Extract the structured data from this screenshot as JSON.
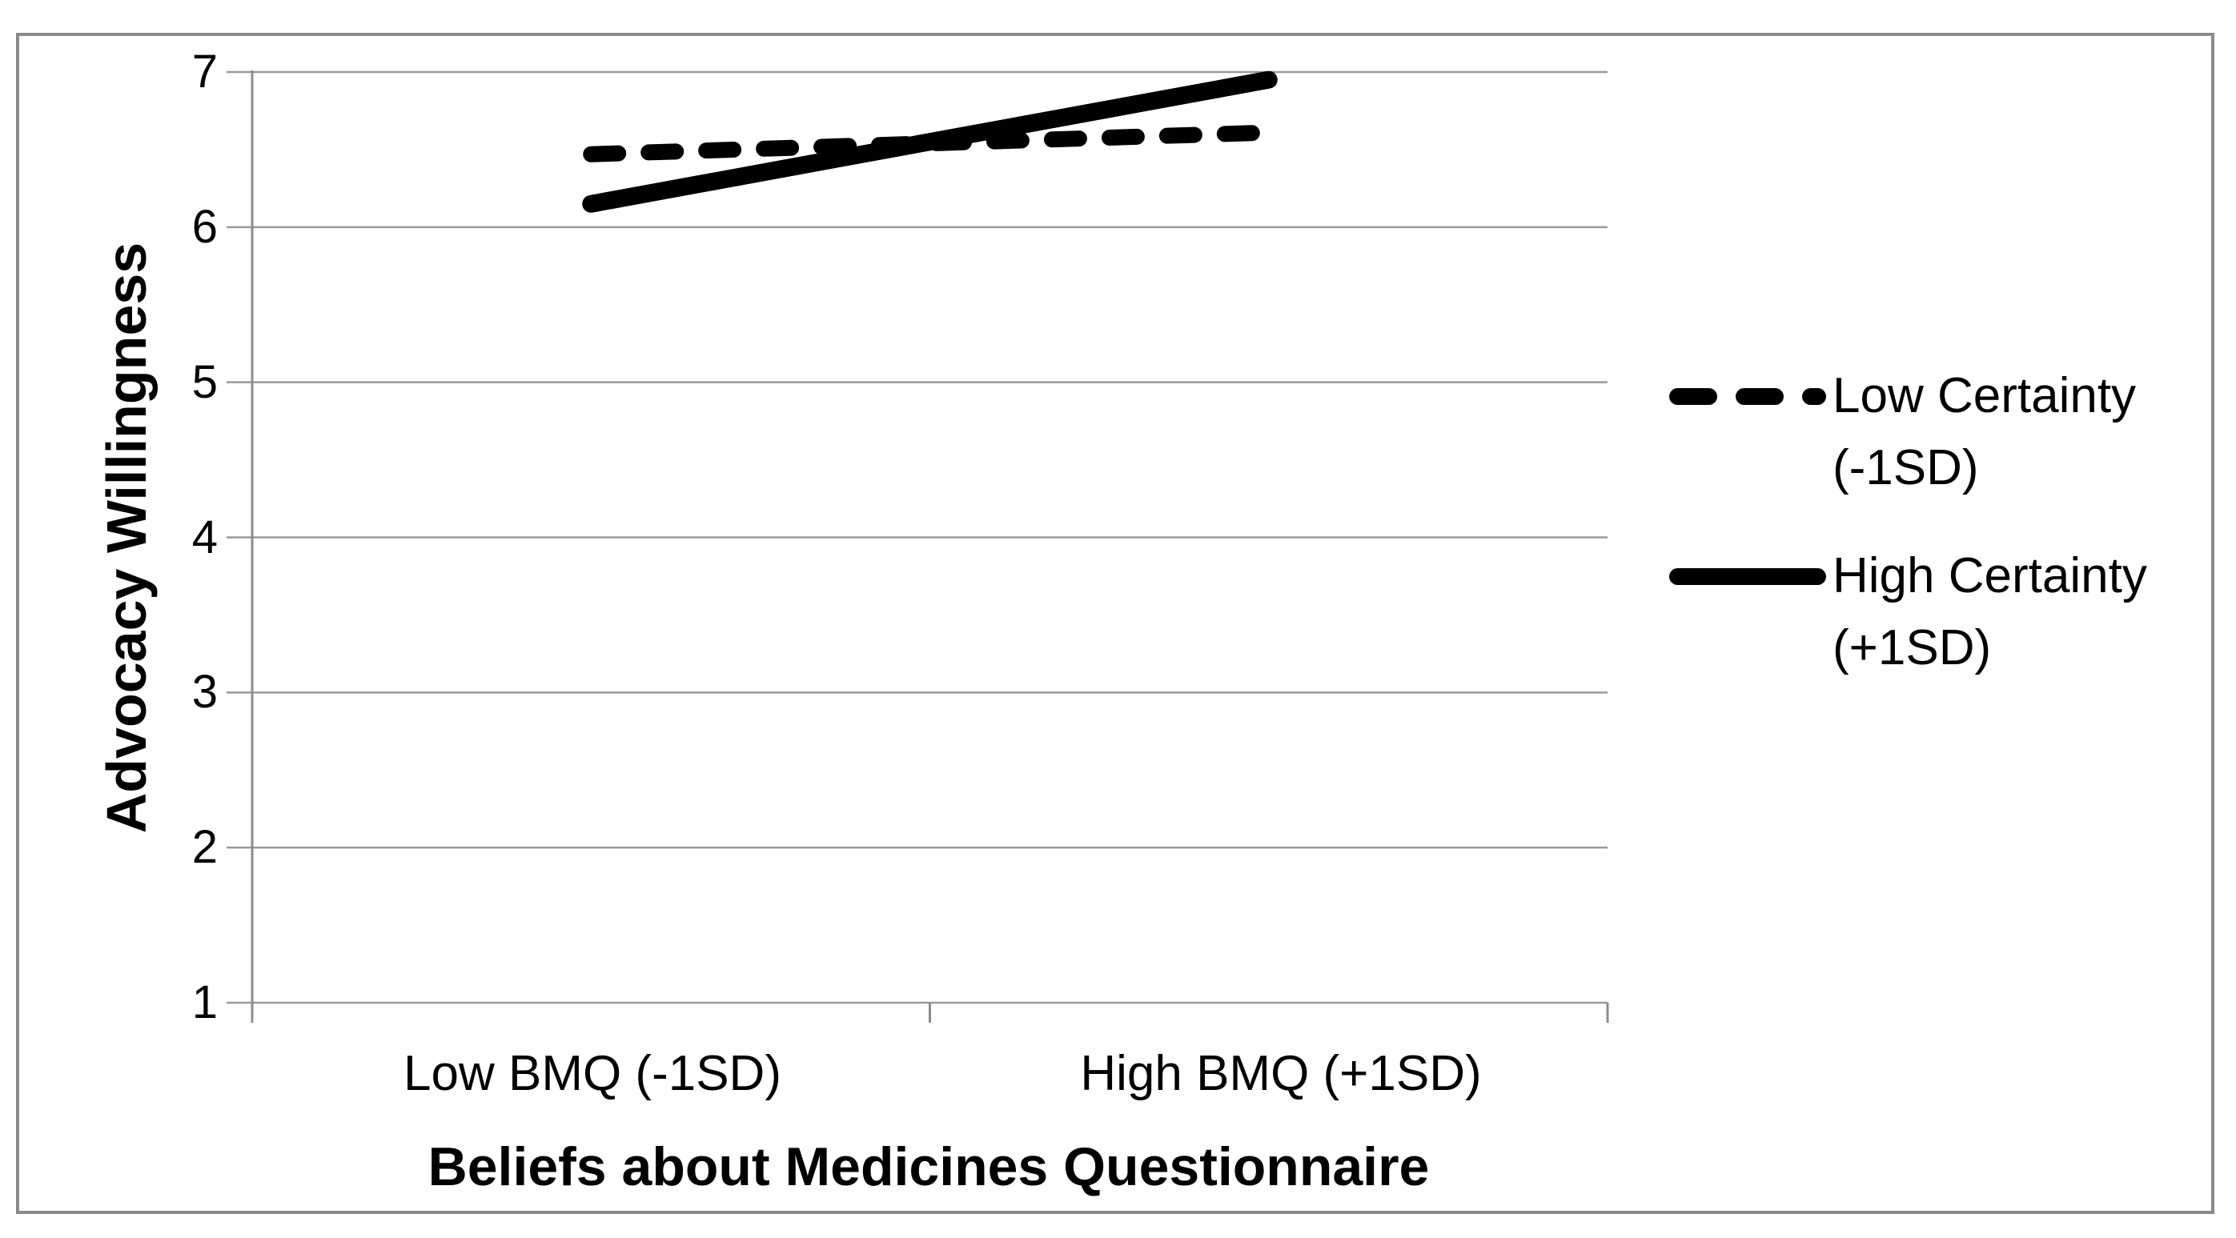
{
  "figure": {
    "background": "#ffffff",
    "border_color": "#8a8a8a"
  },
  "chart_data": {
    "type": "line",
    "title": "",
    "xlabel": "Beliefs about Medicines Questionnaire",
    "ylabel": "Advocacy Willingness",
    "categories": [
      "Low BMQ (-1SD)",
      "High BMQ (+1SD)"
    ],
    "series": [
      {
        "name": "Low Certainty (-1SD)",
        "style": "dashed",
        "values": [
          6.47,
          6.61
        ]
      },
      {
        "name": "High Certainty (+1SD)",
        "style": "solid",
        "values": [
          6.15,
          6.95
        ]
      }
    ],
    "ylim": [
      1,
      7
    ],
    "yticks": [
      1,
      2,
      3,
      4,
      5,
      6,
      7
    ],
    "grid": true,
    "legend_position": "right",
    "line_color": "#000000",
    "gridline_color": "#999999",
    "axis_color": "#8c8c8c"
  },
  "legend": {
    "entries": [
      {
        "line1": "Low Certainty",
        "line2": "(-1SD)",
        "style": "dashed"
      },
      {
        "line1": "High Certainty",
        "line2": "(+1SD)",
        "style": "solid"
      }
    ]
  }
}
